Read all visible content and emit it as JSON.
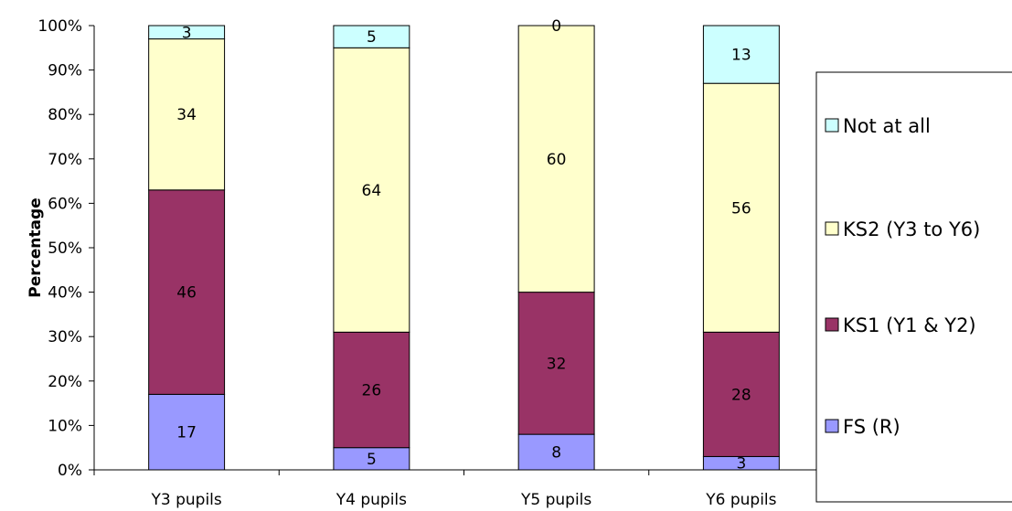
{
  "chart_data": {
    "type": "bar",
    "stacked": true,
    "percent_stacked": true,
    "title": "",
    "xlabel": "",
    "ylabel": "Percentage",
    "ylim": [
      0,
      100
    ],
    "yticks": [
      "0%",
      "10%",
      "20%",
      "30%",
      "40%",
      "50%",
      "60%",
      "70%",
      "80%",
      "90%",
      "100%"
    ],
    "categories": [
      "Y3 pupils",
      "Y4 pupils",
      "Y5 pupils",
      "Y6 pupils"
    ],
    "series": [
      {
        "name": "FS (R)",
        "color": "#9999ff",
        "values": [
          17,
          5,
          8,
          3
        ]
      },
      {
        "name": "KS1 (Y1 & Y2)",
        "color": "#993366",
        "values": [
          46,
          26,
          32,
          28
        ]
      },
      {
        "name": "KS2 (Y3 to Y6)",
        "color": "#ffffcc",
        "values": [
          34,
          64,
          60,
          56
        ]
      },
      {
        "name": "Not at all",
        "color": "#ccffff",
        "values": [
          3,
          5,
          0,
          13
        ]
      }
    ],
    "legend_position": "right",
    "gridlines": false
  }
}
